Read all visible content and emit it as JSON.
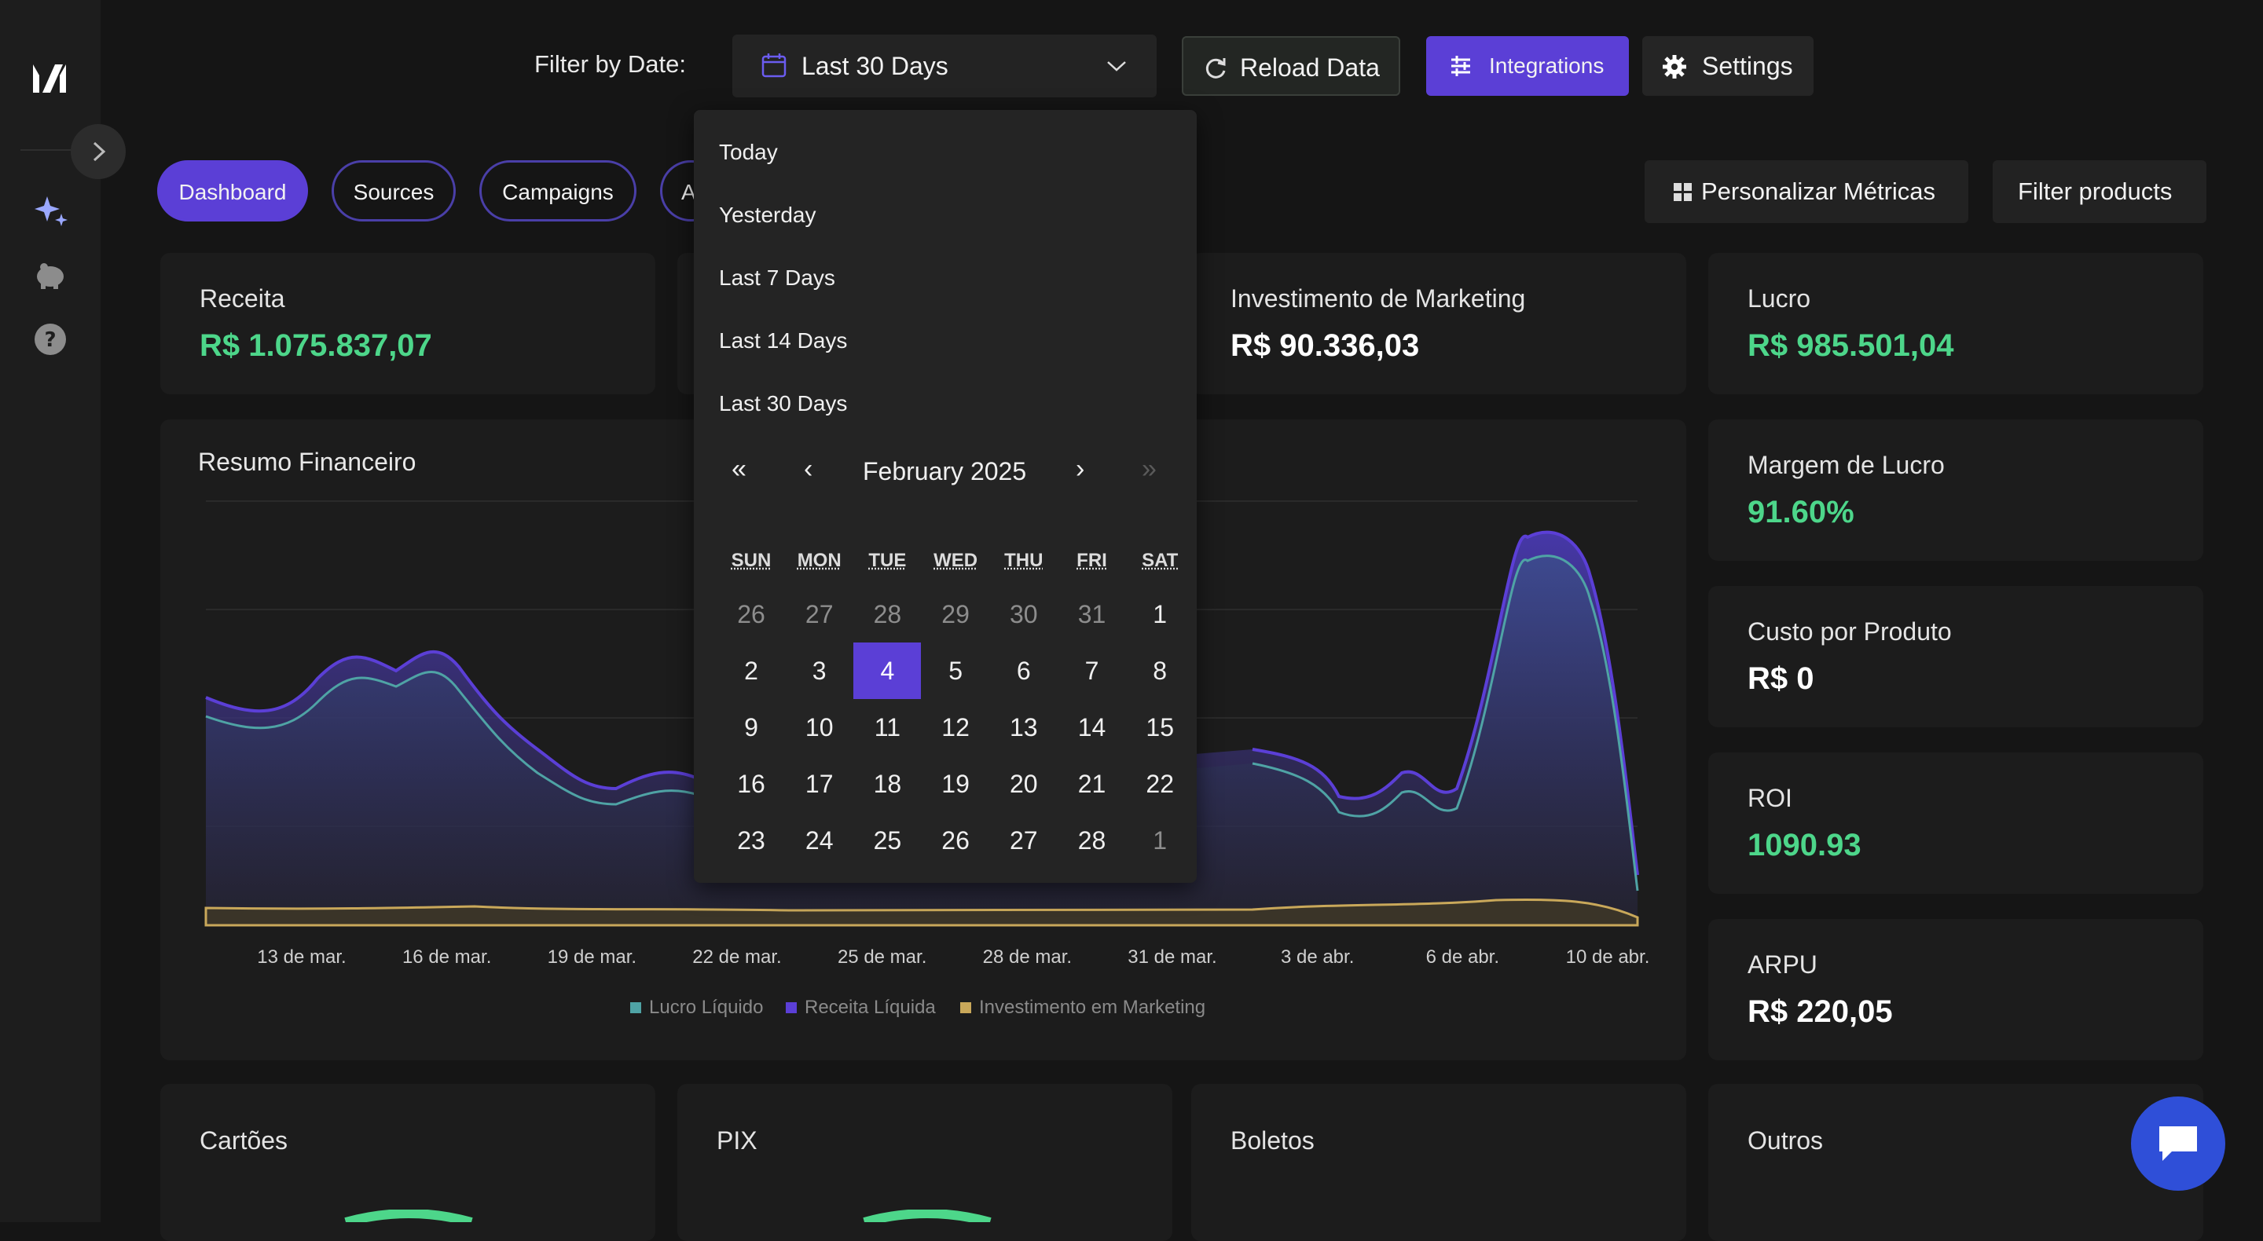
{
  "topbar": {
    "filter_label": "Filter by Date:",
    "date_value": "Last 30 Days",
    "reload_label": "Reload Data",
    "integrations_label": "Integrations",
    "settings_label": "Settings"
  },
  "tabs": [
    "Dashboard",
    "Sources",
    "Campaigns",
    "A"
  ],
  "actions": {
    "metrics_label": "Personalizar Métricas",
    "filter_products_label": "Filter products"
  },
  "kpis": [
    {
      "label": "Receita",
      "value": "R$ 1.075.837,07",
      "color": "#4dd68a"
    },
    {
      "label": "Investimento de Marketing",
      "value": "R$ 90.336,03",
      "color": "#ffffff"
    },
    {
      "label": "Lucro",
      "value": "R$ 985.501,04",
      "color": "#4dd68a"
    }
  ],
  "side_metrics": [
    {
      "label": "Margem de Lucro",
      "value": "91.60%",
      "color": "#4dd68a"
    },
    {
      "label": "Custo por Produto",
      "value": "R$ 0",
      "color": "#ffffff"
    },
    {
      "label": "ROI",
      "value": "1090.93",
      "color": "#4dd68a"
    },
    {
      "label": "ARPU",
      "value": "R$ 220,05",
      "color": "#ffffff"
    }
  ],
  "payment_cards": [
    "Cartões",
    "PIX",
    "Boletos",
    "Outros"
  ],
  "chart_data": {
    "type": "area",
    "title": "Resumo Financeiro",
    "x_ticks": [
      "13 de mar.",
      "16 de mar.",
      "19 de mar.",
      "22 de mar.",
      "25 de mar.",
      "28 de mar.",
      "31 de mar.",
      "3 de abr.",
      "6 de abr.",
      "10 de abr."
    ],
    "series": [
      {
        "name": "Lucro Líquido",
        "color": "#4fa3a5"
      },
      {
        "name": "Receita Líquida",
        "color": "#5b3fd6"
      },
      {
        "name": "Investimento em Marketing",
        "color": "#c9a85a"
      }
    ],
    "grid": true,
    "legend": "bottom"
  },
  "date_dropdown": {
    "options": [
      "Today",
      "Yesterday",
      "Last 7 Days",
      "Last 14 Days",
      "Last 30 Days"
    ],
    "nav": {
      "first": "«",
      "prev": "‹",
      "next": "›",
      "last": "»"
    },
    "month_label": "February 2025",
    "weekdays": [
      "SUN",
      "MON",
      "TUE",
      "WED",
      "THU",
      "FRI",
      "SAT"
    ],
    "weeks": [
      [
        "26",
        "27",
        "28",
        "29",
        "30",
        "31",
        "1"
      ],
      [
        "2",
        "3",
        "4",
        "5",
        "6",
        "7",
        "8"
      ],
      [
        "9",
        "10",
        "11",
        "12",
        "13",
        "14",
        "15"
      ],
      [
        "16",
        "17",
        "18",
        "19",
        "20",
        "21",
        "22"
      ],
      [
        "23",
        "24",
        "25",
        "26",
        "27",
        "28",
        "1"
      ]
    ],
    "selected_day": "4"
  }
}
